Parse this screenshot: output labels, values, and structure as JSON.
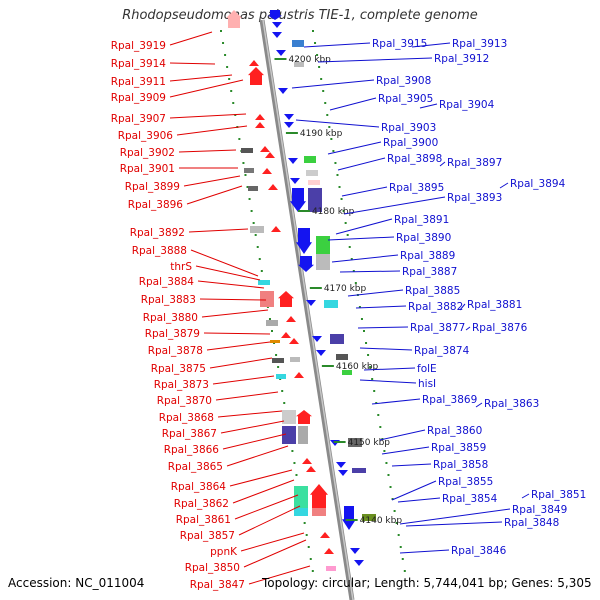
{
  "title": "Rhodopseudomonas palustris TIE-1, complete genome",
  "footer": {
    "accession": "Accession: NC_011004",
    "summary": "Topology: circular; Length: 5,744,041 bp; Genes: 5,305"
  },
  "colors": {
    "left_label": "#e00000",
    "right_label": "#1010d0",
    "backbone": "#808080",
    "tick": "#2a8a2a"
  },
  "kbp_ticks": [
    {
      "label": "4200 kbp"
    },
    {
      "label": "4190 kbp"
    },
    {
      "label": "4180 kbp"
    },
    {
      "label": "4170 kbp"
    },
    {
      "label": "4160 kbp"
    },
    {
      "label": "4150 kbp"
    },
    {
      "label": "4140 kbp"
    }
  ],
  "left_genes": [
    "Rpal_3919",
    "Rpal_3914",
    "Rpal_3911",
    "Rpal_3909",
    "Rpal_3907",
    "Rpal_3906",
    "Rpal_3902",
    "Rpal_3901",
    "Rpal_3899",
    "Rpal_3896",
    "Rpal_3892",
    "Rpal_3888",
    "thrS",
    "Rpal_3884",
    "Rpal_3883",
    "Rpal_3880",
    "Rpal_3879",
    "Rpal_3878",
    "Rpal_3875",
    "Rpal_3873",
    "Rpal_3870",
    "Rpal_3868",
    "Rpal_3867",
    "Rpal_3866",
    "Rpal_3865",
    "Rpal_3864",
    "Rpal_3862",
    "Rpal_3861",
    "Rpal_3857",
    "ppnK",
    "Rpal_3850",
    "Rpal_3847"
  ],
  "right_genes": [
    "Rpal_3915",
    "Rpal_3913",
    "Rpal_3912",
    "Rpal_3908",
    "Rpal_3905",
    "Rpal_3904",
    "Rpal_3903",
    "Rpal_3900",
    "Rpal_3898",
    "Rpal_3897",
    "Rpal_3895",
    "Rpal_3894",
    "Rpal_3893",
    "Rpal_3891",
    "Rpal_3890",
    "Rpal_3889",
    "Rpal_3887",
    "Rpal_3885",
    "Rpal_3882",
    "Rpal_3881",
    "Rpal_3877",
    "Rpal_3876",
    "Rpal_3874",
    "folE",
    "hisI",
    "Rpal_3869",
    "Rpal_3863",
    "Rpal_3860",
    "Rpal_3859",
    "Rpal_3858",
    "Rpal_3855",
    "Rpal_3854",
    "Rpal_3851",
    "Rpal_3849",
    "Rpal_3848",
    "Rpal_3846"
  ]
}
